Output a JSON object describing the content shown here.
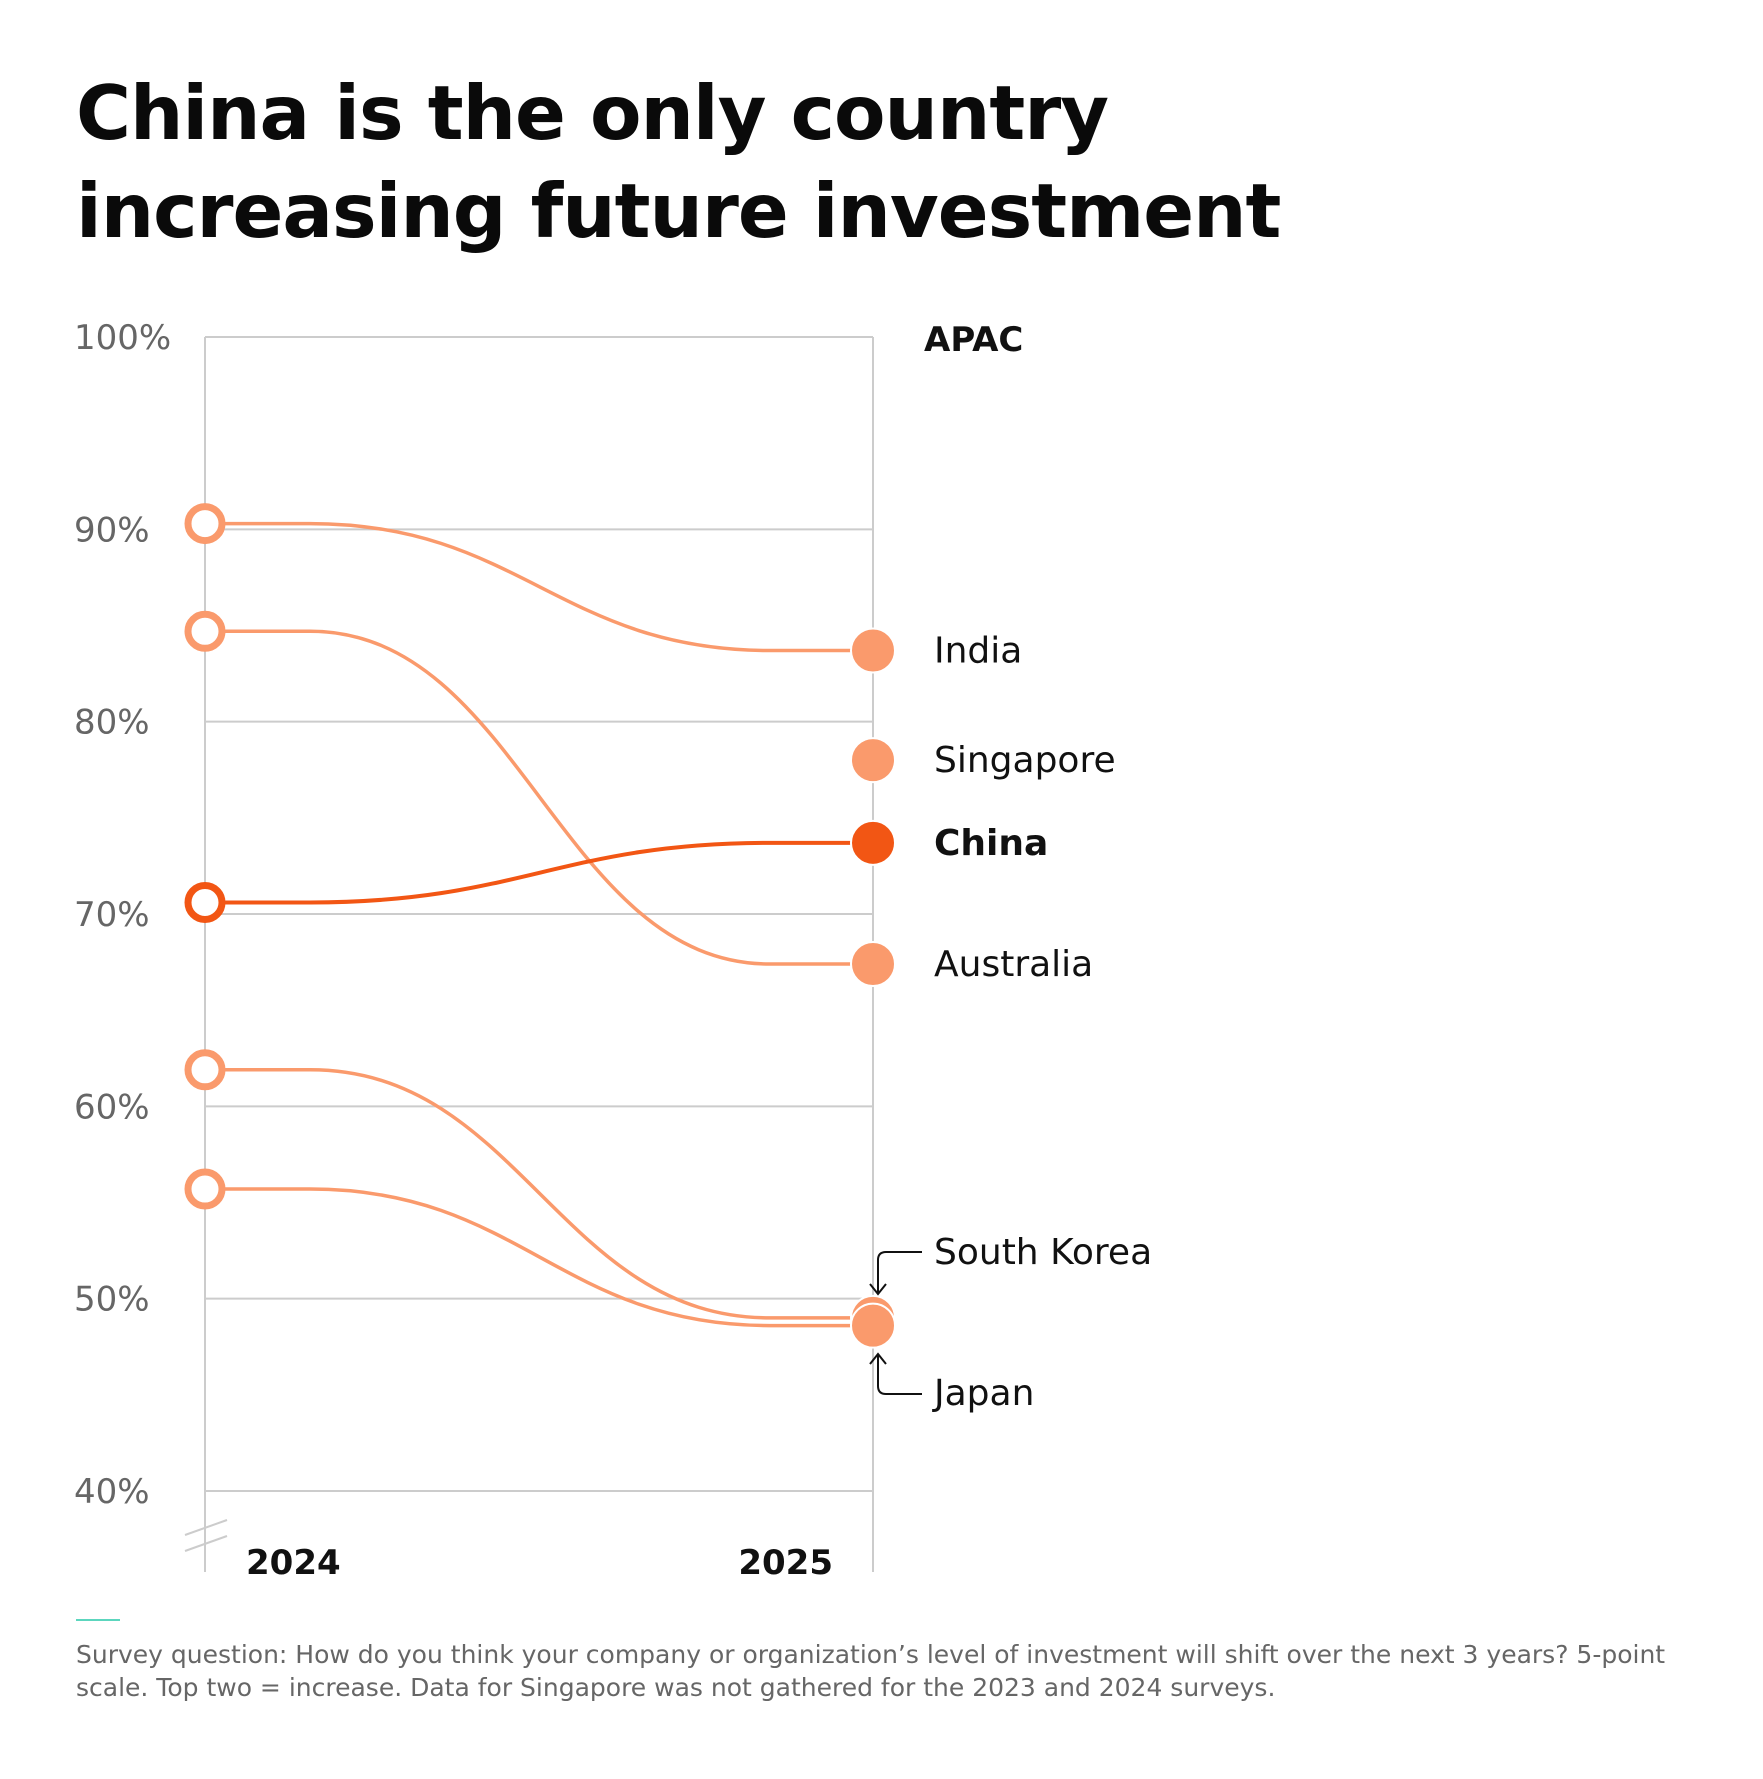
{
  "title": "China is the only country increasing future investment",
  "footnote": "Survey question: How do you think your company or organization’s level of investment will shift over the next 3 years? 5-point scale. Top two = increase. Data for Singapore was not gathered for the 2023 and 2024 surveys.",
  "colors": {
    "series": "#fa9a6c",
    "highlight": "#f25614",
    "grid": "#cccccc",
    "axis_label": "#666666",
    "footer_rule": "#5cd6be"
  },
  "chart_data": {
    "type": "line",
    "subtype": "slope",
    "region_label": "APAC",
    "x": [
      "2024",
      "2025"
    ],
    "ylim": [
      40,
      100
    ],
    "yticks": [
      "100%",
      "90%",
      "80%",
      "70%",
      "60%",
      "50%",
      "40%"
    ],
    "ytick_values": [
      100,
      90,
      80,
      70,
      60,
      50,
      40
    ],
    "axis_break": true,
    "series": [
      {
        "name": "India",
        "values": [
          90.3,
          83.7
        ],
        "highlight": false
      },
      {
        "name": "Singapore",
        "values": [
          null,
          78
        ],
        "highlight": false
      },
      {
        "name": "China",
        "values": [
          70.6,
          73.7
        ],
        "highlight": true
      },
      {
        "name": "Australia",
        "values": [
          84.7,
          67.4
        ],
        "highlight": false
      },
      {
        "name": "South Korea",
        "values": [
          61.9,
          49
        ],
        "highlight": false
      },
      {
        "name": "Japan",
        "values": [
          55.7,
          48.6
        ],
        "highlight": false
      }
    ]
  }
}
